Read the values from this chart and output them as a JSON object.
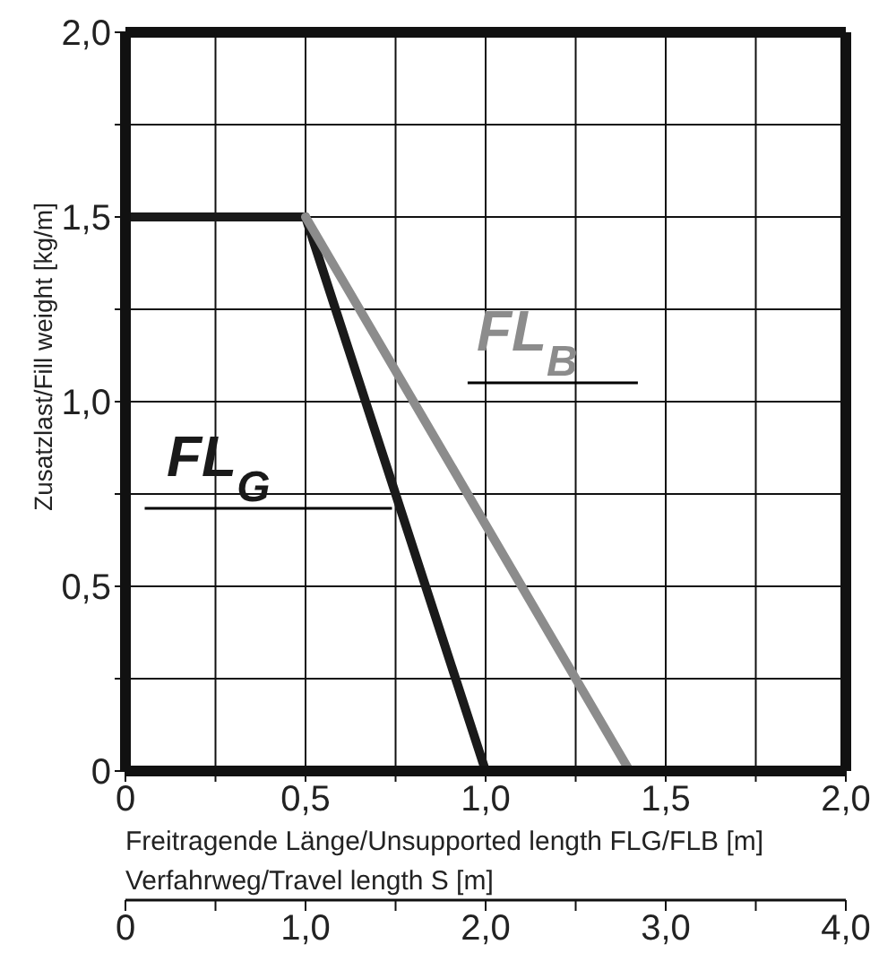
{
  "chart_data": {
    "type": "line",
    "xlabel": "Freitragende Länge/Unsupported length FLG/FLB [m]",
    "ylabel": "Zusatzlast/Fill weight [kg/m]",
    "x2label": "Verfahrweg/Travel length S [m]",
    "xlim": [
      0,
      2
    ],
    "xticks": [
      0,
      {
        "value": 0.25,
        "label": null
      },
      {
        "value": 0.5,
        "label": "0,5"
      },
      {
        "value": 0.75,
        "label": null
      },
      {
        "value": 1,
        "label": "1,0"
      },
      {
        "value": 1.25,
        "label": null
      },
      {
        "value": 1.5,
        "label": "1,5"
      },
      {
        "value": 1.75,
        "label": null
      },
      {
        "value": 2,
        "label": "2,0"
      }
    ],
    "ylim": [
      0,
      2
    ],
    "yticks": [
      0,
      {
        "value": 0.25,
        "label": null
      },
      {
        "value": 0.5,
        "label": "0,5"
      },
      {
        "value": 0.75,
        "label": null
      },
      {
        "value": 1,
        "label": "1,0"
      },
      {
        "value": 1.25,
        "label": null
      },
      {
        "value": 1.5,
        "label": "1,5"
      },
      {
        "value": 1.75,
        "label": null
      },
      {
        "value": 2,
        "label": "2,0"
      }
    ],
    "x2lim": [
      0,
      4
    ],
    "x2ticks": [
      0,
      {
        "value": 0.5,
        "label": null
      },
      {
        "value": 1,
        "label": "1,0"
      },
      {
        "value": 1.5,
        "label": null
      },
      {
        "value": 2,
        "label": "2,0"
      },
      {
        "value": 2.5,
        "label": null
      },
      {
        "value": 3,
        "label": "3,0"
      },
      {
        "value": 3.5,
        "label": null
      },
      {
        "value": 4,
        "label": "4,0"
      }
    ],
    "grid": true,
    "marker": "none",
    "line_style": "solid",
    "series": [
      {
        "name": "FL$_{G}$",
        "color": "#1a1a1a",
        "x": [
          0,
          0.5,
          1.0
        ],
        "values": [
          1.5,
          1.5,
          0
        ]
      },
      {
        "name": "FL$_{B}$",
        "color": "#8c8c8c",
        "x": [
          0.5,
          1.4
        ],
        "values": [
          1.5,
          0
        ]
      }
    ]
  }
}
